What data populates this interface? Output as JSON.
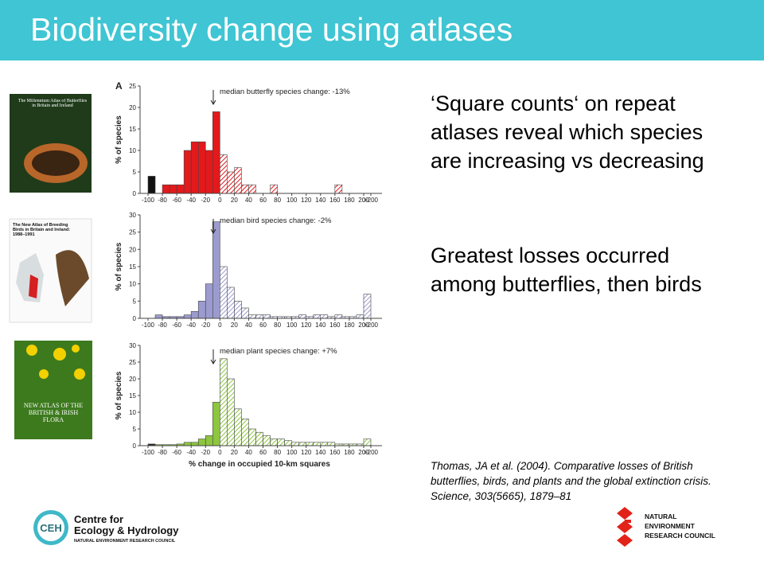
{
  "header": {
    "title": "Biodiversity change using atlases"
  },
  "paragraphs": [
    "‘Square counts‘ on repeat atlases reveal which species are increasing vs decreasing",
    "Greatest losses occurred among butterflies, then birds"
  ],
  "citation": "Thomas, JA et al. (2004). Comparative losses of British butterflies, birds, and plants and the global extinction crisis. Science, 303(5665), 1879–81",
  "covers": [
    "The Millennium Atlas of Butterflies in Britain and Ireland",
    "The New Atlas of Breeding Birds in Britain and Ireland: 1988–1991",
    "NEW ATLAS OF THE BRITISH & IRISH FLORA"
  ],
  "logos": {
    "ceh_name": [
      "Centre for",
      "Ecology & Hydrology"
    ],
    "ceh_sub": "NATURAL ENVIRONMENT RESEARCH COUNCIL",
    "ceh_mark": "CEH",
    "nerc": [
      "NATURAL",
      "ENVIRONMENT",
      "RESEARCH COUNCIL"
    ]
  },
  "chart_data": [
    {
      "type": "histogram",
      "panel_label": "A",
      "annotation": "median butterfly species change: -13%",
      "y_label": "% of species",
      "color": "#e3191c",
      "first_bar_color": "#111111",
      "bins": [
        -100,
        -90,
        -80,
        -70,
        -60,
        -50,
        -40,
        -30,
        -20,
        -10,
        0,
        10,
        20,
        30,
        40,
        50,
        60,
        70,
        80,
        90,
        100,
        110,
        120,
        130,
        140,
        150,
        160,
        170,
        180,
        190,
        200,
        210
      ],
      "counts": [
        4,
        0,
        2,
        2,
        2,
        10,
        12,
        12,
        10,
        19,
        9,
        5,
        6,
        2,
        2,
        0,
        0,
        2,
        0,
        0,
        0,
        0,
        0,
        0,
        0,
        0,
        2,
        0,
        0,
        0,
        0
      ],
      "ylim": [
        0,
        25
      ],
      "yticks": [
        0,
        5,
        10,
        15,
        20,
        25
      ],
      "xlim": [
        -100,
        210
      ],
      "xticks": [
        -100,
        -80,
        -60,
        -40,
        -20,
        0,
        20,
        40,
        60,
        80,
        100,
        120,
        140,
        160,
        180,
        200,
        {
          "value": 210,
          "label": ">200"
        }
      ]
    },
    {
      "type": "histogram",
      "annotation": "median bird species change: -2%",
      "y_label": "% of species",
      "color": "#9b9bcf",
      "bins": [
        -100,
        -90,
        -80,
        -70,
        -60,
        -50,
        -40,
        -30,
        -20,
        -10,
        0,
        10,
        20,
        30,
        40,
        50,
        60,
        70,
        80,
        90,
        100,
        110,
        120,
        130,
        140,
        150,
        160,
        170,
        180,
        190,
        200,
        210
      ],
      "counts": [
        0,
        1,
        0.5,
        0.5,
        0.5,
        1,
        2,
        5,
        10,
        28,
        15,
        9,
        5,
        3,
        1,
        1,
        1,
        0.5,
        0.5,
        0.5,
        0.5,
        1,
        0.5,
        1,
        1,
        0.5,
        1,
        0.5,
        0.5,
        1,
        7
      ],
      "ylim": [
        0,
        30
      ],
      "yticks": [
        0,
        5,
        10,
        15,
        20,
        25,
        30
      ],
      "xlim": [
        -100,
        210
      ],
      "xticks": [
        -100,
        -80,
        -60,
        -40,
        -20,
        0,
        20,
        40,
        60,
        80,
        100,
        120,
        140,
        160,
        180,
        200,
        {
          "value": 210,
          "label": ">200"
        }
      ]
    },
    {
      "type": "histogram",
      "annotation": "median plant species change: +7%",
      "y_label": "% of species",
      "x_label": "% change in occupied 10-km squares",
      "color": "#8dc63f",
      "first_bar_color": "#222222",
      "bins": [
        -100,
        -90,
        -80,
        -70,
        -60,
        -50,
        -40,
        -30,
        -20,
        -10,
        0,
        10,
        20,
        30,
        40,
        50,
        60,
        70,
        80,
        90,
        100,
        110,
        120,
        130,
        140,
        150,
        160,
        170,
        180,
        190,
        200,
        210
      ],
      "counts": [
        0.5,
        0.3,
        0.3,
        0.3,
        0.5,
        1,
        1,
        2,
        3,
        13,
        26,
        20,
        11,
        8,
        5,
        4,
        3,
        2,
        2,
        1.5,
        1,
        1,
        1,
        1,
        1,
        1,
        0.5,
        0.5,
        0.5,
        0.5,
        2
      ],
      "ylim": [
        0,
        30
      ],
      "yticks": [
        0,
        5,
        10,
        15,
        20,
        25,
        30
      ],
      "xlim": [
        -100,
        210
      ],
      "xticks": [
        -100,
        -80,
        -60,
        -40,
        -20,
        0,
        20,
        40,
        60,
        80,
        100,
        120,
        140,
        160,
        180,
        200,
        {
          "value": 210,
          "label": ">200"
        }
      ]
    }
  ]
}
